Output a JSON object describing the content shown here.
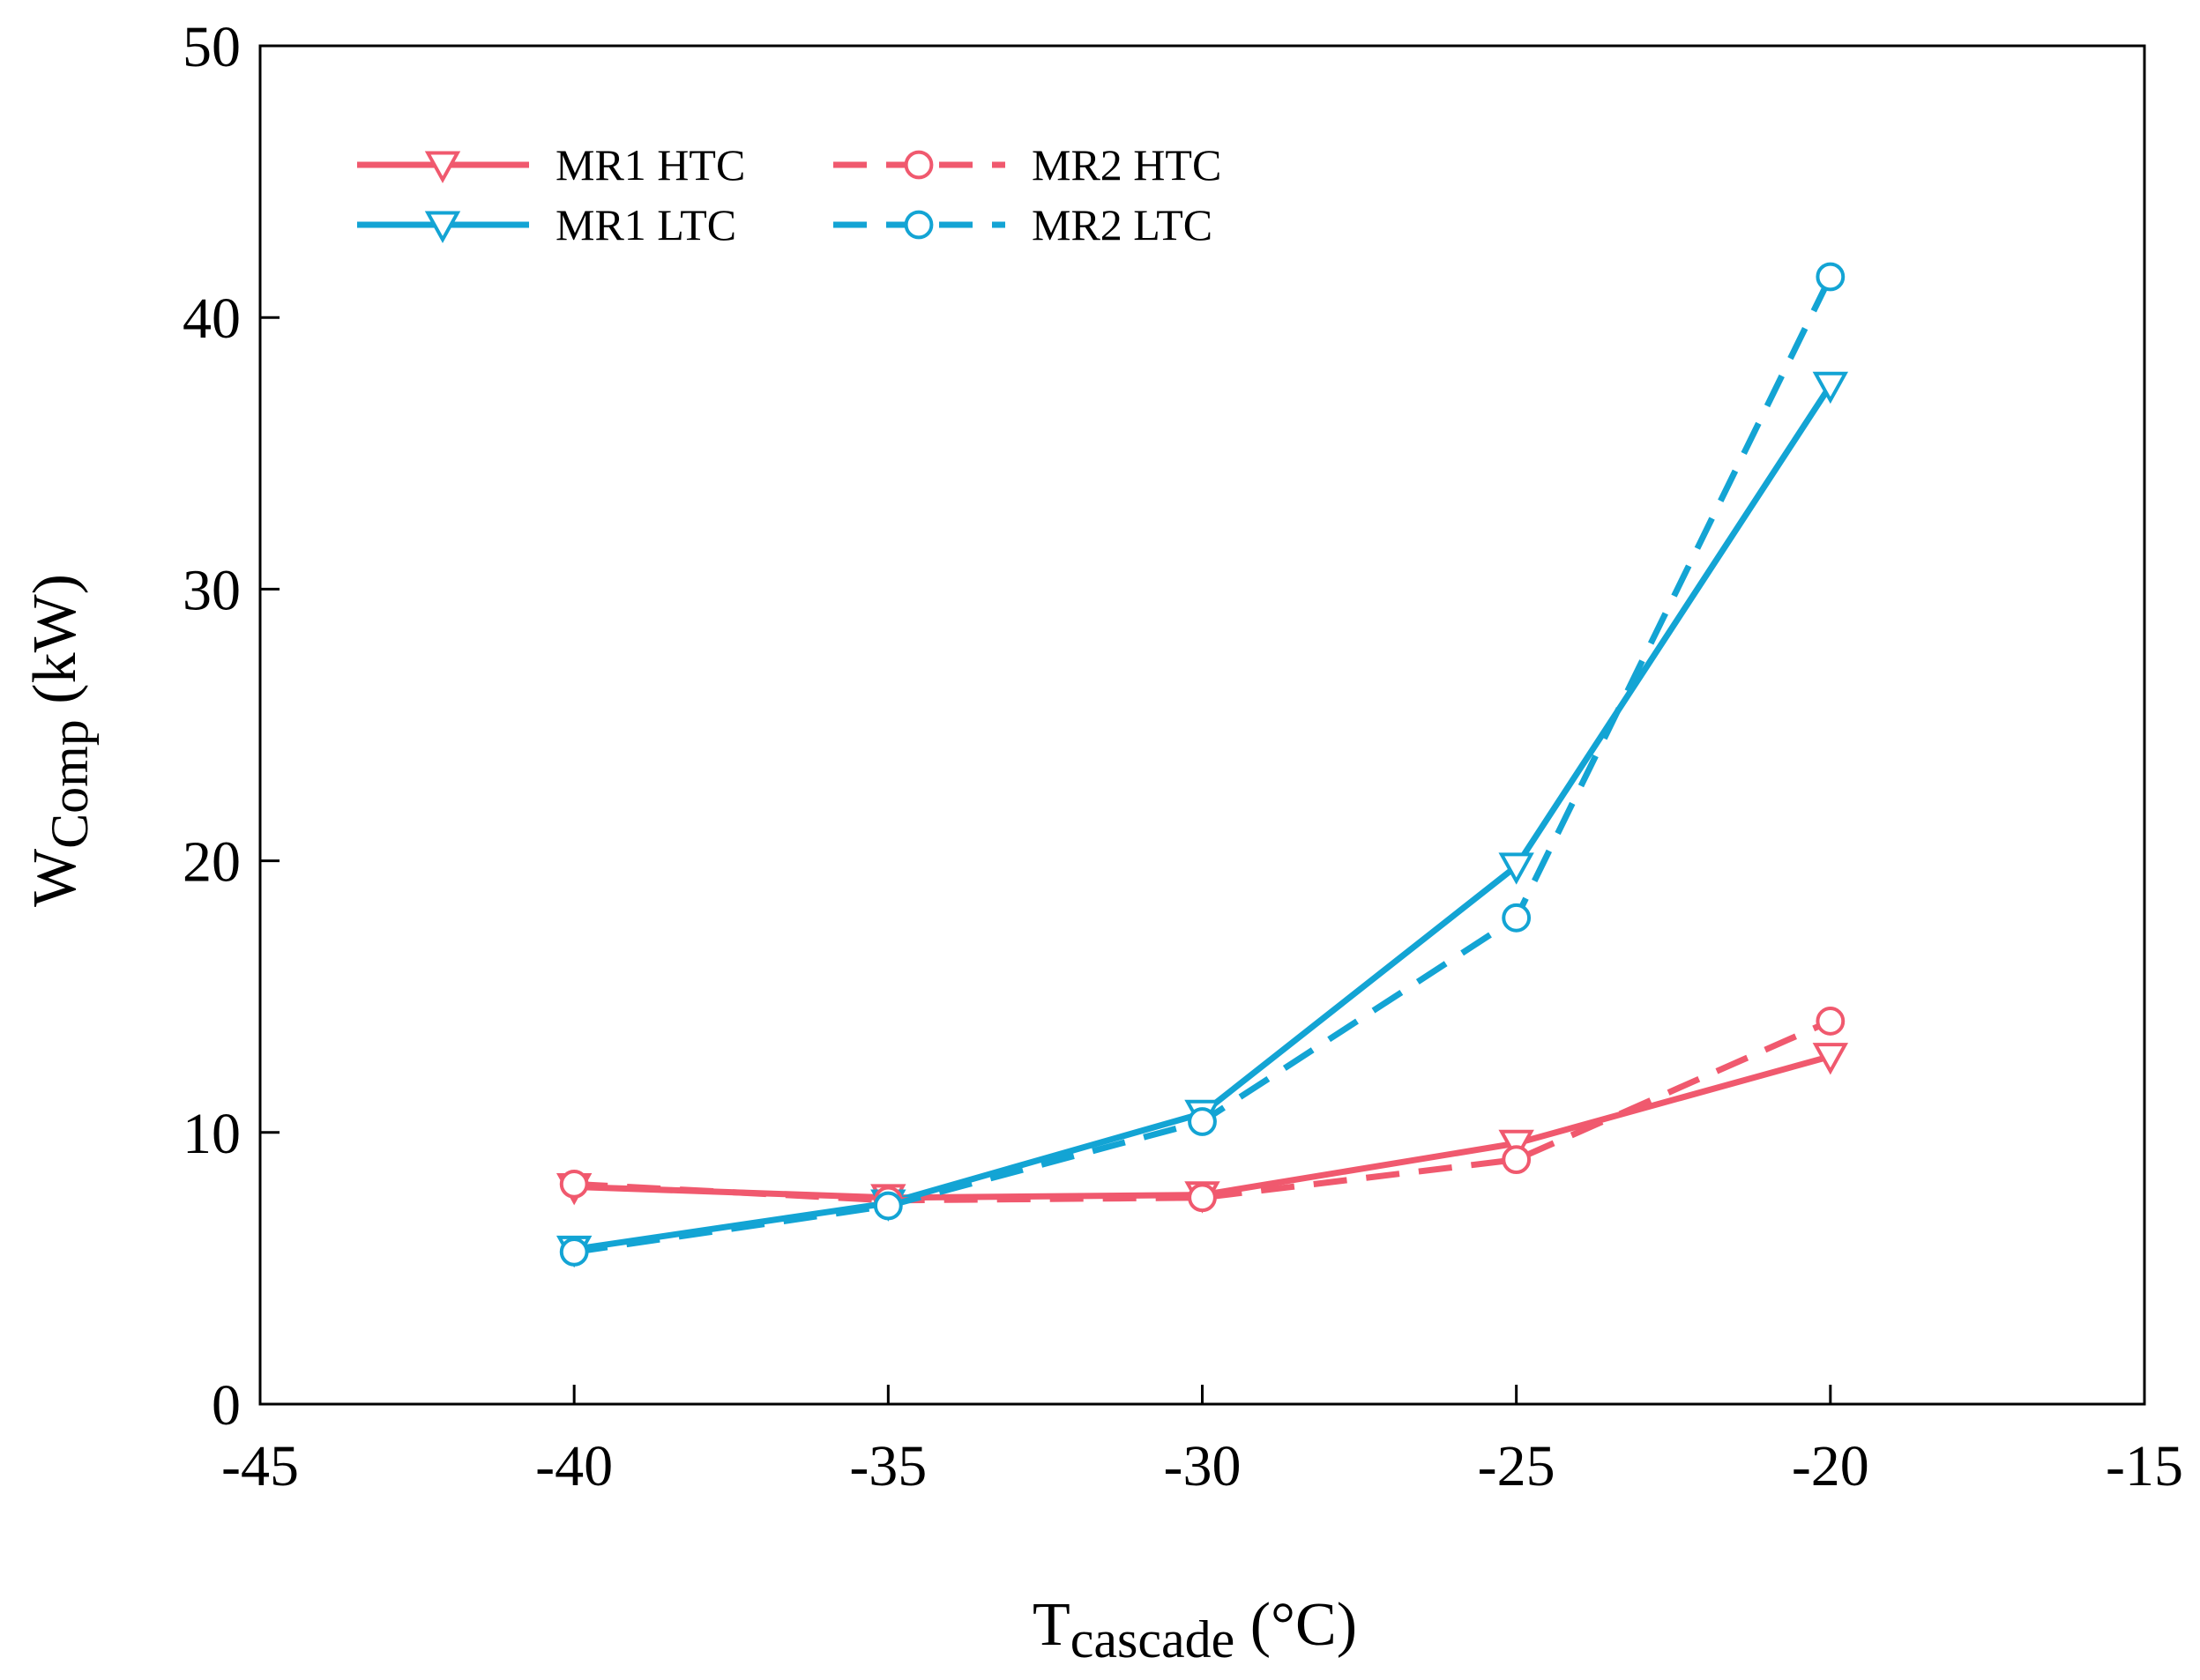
{
  "chart_data": {
    "type": "line",
    "title": "",
    "xlabel": {
      "main": "T",
      "sub": "cascade",
      "unit": " (°C)"
    },
    "ylabel": {
      "main": "W",
      "sub": "Comp",
      "unit": " (kW)"
    },
    "xlim": [
      -45,
      -15
    ],
    "ylim": [
      0,
      50
    ],
    "xticks": [
      -45,
      -40,
      -35,
      -30,
      -25,
      -20,
      -15
    ],
    "yticks": [
      0,
      10,
      20,
      30,
      40,
      50
    ],
    "x": [
      -40,
      -35,
      -30,
      -25,
      -20
    ],
    "legend_position": "top-left",
    "series": [
      {
        "name": "MR1 HTC",
        "values": [
          8.0,
          7.6,
          7.7,
          9.6,
          12.8
        ],
        "color": "#f0596e",
        "dash": "solid",
        "marker": "triangle-down"
      },
      {
        "name": "MR1 LTC",
        "values": [
          5.7,
          7.4,
          10.7,
          19.8,
          37.5
        ],
        "color": "#13a4d4",
        "dash": "solid",
        "marker": "triangle-down"
      },
      {
        "name": "MR2 HTC",
        "values": [
          8.1,
          7.5,
          7.6,
          9.0,
          14.1
        ],
        "color": "#f0596e",
        "dash": "dashed",
        "marker": "circle"
      },
      {
        "name": "MR2 LTC",
        "values": [
          5.6,
          7.3,
          10.4,
          17.9,
          41.5
        ],
        "color": "#13a4d4",
        "dash": "dashed",
        "marker": "circle"
      }
    ]
  }
}
